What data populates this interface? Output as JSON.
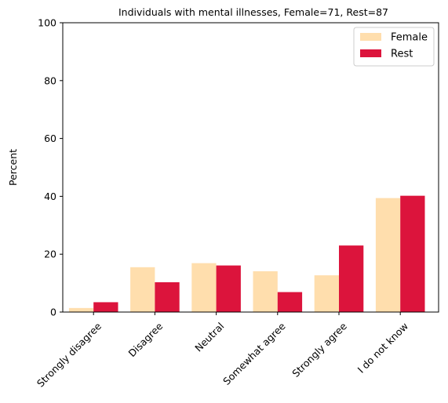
{
  "chart_data": {
    "type": "bar",
    "title": "Individuals with mental illnesses, Female=71, Rest=87",
    "xlabel": "",
    "ylabel": "Percent",
    "ylim": [
      0,
      100
    ],
    "yticks": [
      0,
      20,
      40,
      60,
      80,
      100
    ],
    "categories": [
      "Strongly disagree",
      "Disagree",
      "Neutral",
      "Somewhat agree",
      "Strongly agree",
      "I do not know"
    ],
    "series": [
      {
        "name": "Female",
        "color": "#FFDEAD",
        "values": [
          1.4,
          15.5,
          16.9,
          14.1,
          12.7,
          39.4
        ]
      },
      {
        "name": "Rest",
        "color": "#DC143C",
        "values": [
          3.4,
          10.3,
          16.1,
          6.9,
          23.0,
          40.2
        ]
      }
    ],
    "legend_position": "top-right",
    "grid": false
  }
}
